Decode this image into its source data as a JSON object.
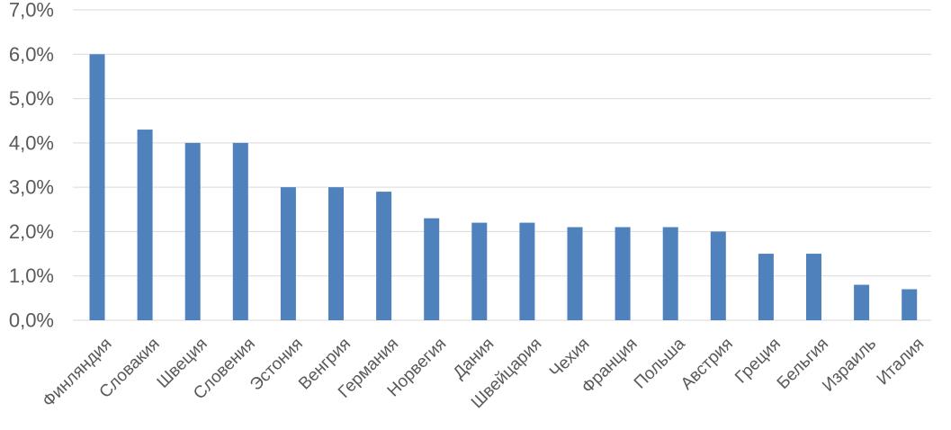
{
  "chart_data": {
    "type": "bar",
    "categories": [
      "Финляндия",
      "Словакия",
      "Швеция",
      "Словения",
      "Эстония",
      "Венгрия",
      "Германия",
      "Норвегия",
      "Дания",
      "Швейцария",
      "Чехия",
      "Франция",
      "Польша",
      "Австрия",
      "Греция",
      "Бельгия",
      "Израиль",
      "Италия"
    ],
    "values": [
      6.0,
      4.3,
      4.0,
      4.0,
      3.0,
      3.0,
      2.9,
      2.3,
      2.2,
      2.2,
      2.1,
      2.1,
      2.1,
      2.0,
      1.5,
      1.5,
      0.8,
      0.7
    ],
    "y_ticks": [
      "0,0%",
      "1,0%",
      "2,0%",
      "3,0%",
      "4,0%",
      "5,0%",
      "6,0%",
      "7,0%"
    ],
    "ylim": [
      0,
      7
    ],
    "grid": true,
    "bar_color": "#4F81BD",
    "grid_color": "#D9D9D9",
    "label_color": "#595959"
  }
}
